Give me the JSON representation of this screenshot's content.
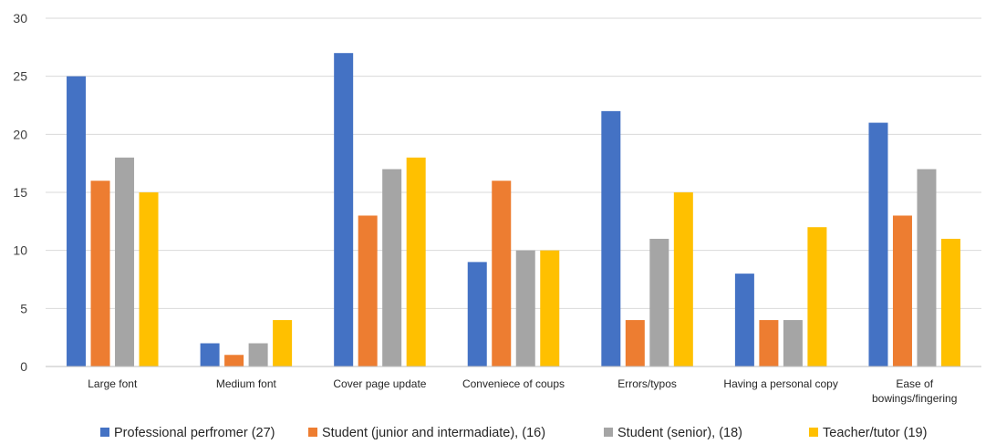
{
  "chart_data": {
    "type": "bar",
    "categories": [
      "Large font",
      "Medium font",
      "Cover page update",
      "Conveniece of coups",
      "Errors/typos",
      "Having a personal copy",
      "Ease of bowings/fingering"
    ],
    "category_lines": [
      [
        "Large font"
      ],
      [
        "Medium font"
      ],
      [
        "Cover page update"
      ],
      [
        "Conveniece of coups"
      ],
      [
        "Errors/typos"
      ],
      [
        "Having a personal copy"
      ],
      [
        "Ease of",
        "bowings/fingering"
      ]
    ],
    "series": [
      {
        "name": "Professional perfromer (27)",
        "color": "#4472c4",
        "values": [
          25,
          2,
          27,
          9,
          22,
          8,
          21
        ]
      },
      {
        "name": "Student (junior and intermadiate), (16)",
        "color": "#ed7d31",
        "values": [
          16,
          1,
          13,
          16,
          4,
          4,
          13
        ]
      },
      {
        "name": "Student (senior), (18)",
        "color": "#a5a5a5",
        "values": [
          18,
          2,
          17,
          10,
          11,
          4,
          17
        ]
      },
      {
        "name": "Teacher/tutor (19)",
        "color": "#ffc000",
        "values": [
          15,
          4,
          18,
          10,
          15,
          12,
          11
        ]
      }
    ],
    "ylim": [
      0,
      30
    ],
    "yticks": [
      "0",
      "5",
      "10",
      "15",
      "20",
      "25",
      "30"
    ],
    "ytick_values": [
      0,
      5,
      10,
      15,
      20,
      25,
      30
    ],
    "grid": true,
    "legend_position": "bottom"
  }
}
